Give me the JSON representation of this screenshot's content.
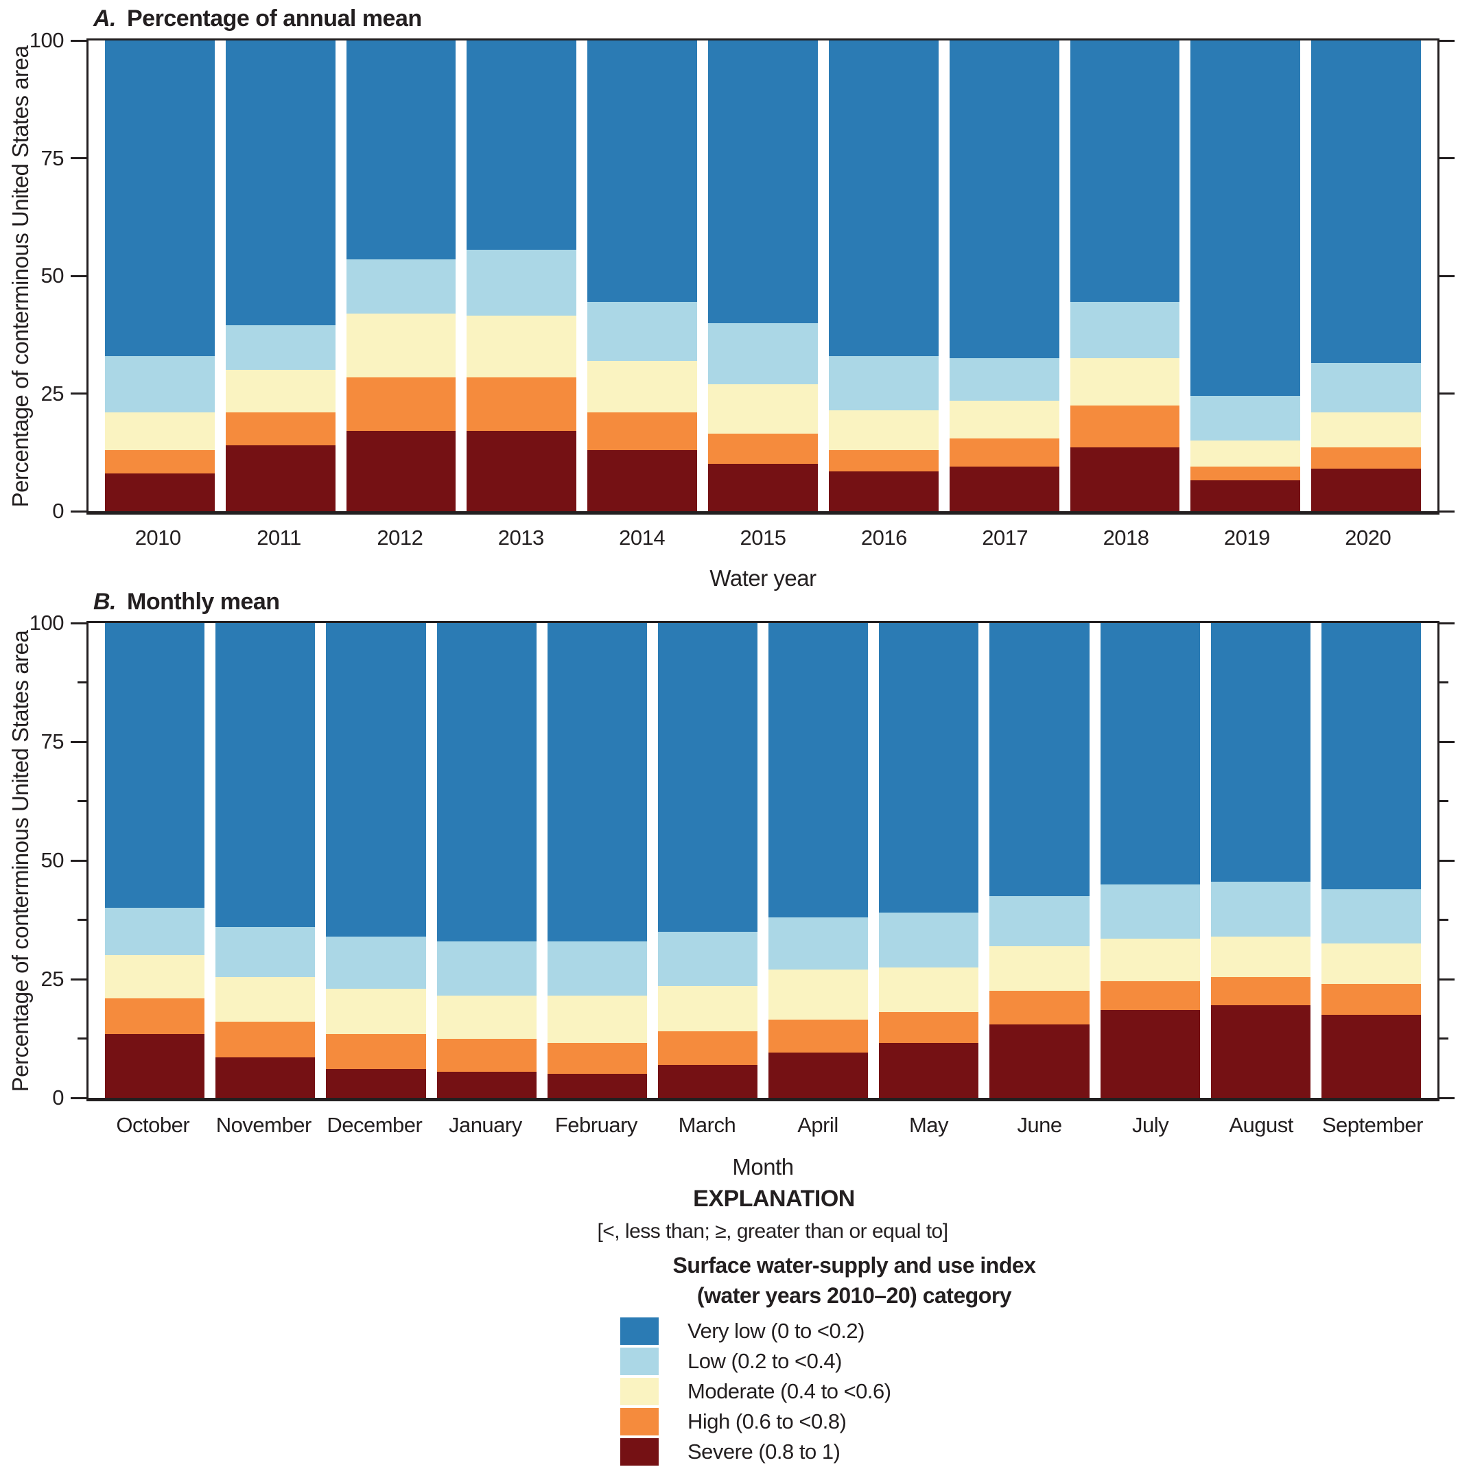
{
  "ink_color": "#231f20",
  "palette": {
    "very_low": "#2b7bb4",
    "low": "#abd7e6",
    "moderate": "#faf3c1",
    "high": "#f58b3d",
    "severe": "#751114"
  },
  "chart_data": [
    {
      "type": "bar",
      "stacked": true,
      "panel_label": "A.",
      "title": "Percentage of annual mean",
      "xlabel": "Water year",
      "ylabel": "Percentage of conterminous United States area",
      "ylim": [
        0,
        100
      ],
      "yticks": [
        0,
        25,
        50,
        75,
        100
      ],
      "minor_yticks": [],
      "grid": false,
      "legend_position": "below-figure",
      "categories": [
        "2010",
        "2011",
        "2012",
        "2013",
        "2014",
        "2015",
        "2016",
        "2017",
        "2018",
        "2019",
        "2020"
      ],
      "series": [
        {
          "name": "Severe (0.8 to 1)",
          "color_key": "severe",
          "values": [
            8,
            14,
            17,
            17,
            13,
            10,
            8.5,
            9.5,
            13.5,
            6.5,
            9
          ]
        },
        {
          "name": "High (0.6 to <0.8)",
          "color_key": "high",
          "values": [
            5,
            7,
            11.5,
            11.5,
            8,
            6.5,
            4.5,
            6,
            9,
            3,
            4.5
          ]
        },
        {
          "name": "Moderate (0.4 to <0.6)",
          "color_key": "moderate",
          "values": [
            8,
            9,
            13.5,
            13,
            11,
            10.5,
            8.5,
            8,
            10,
            5.5,
            7.5
          ]
        },
        {
          "name": "Low (0.2 to <0.4)",
          "color_key": "low",
          "values": [
            12,
            9.5,
            11.5,
            14,
            12.5,
            13,
            11.5,
            9,
            12,
            9.5,
            10.5
          ]
        },
        {
          "name": "Very low (0 to <0.2)",
          "color_key": "very_low",
          "values": [
            67,
            60.5,
            46.5,
            44.5,
            55.5,
            60,
            67,
            67.5,
            55.5,
            75.5,
            68.5
          ]
        }
      ]
    },
    {
      "type": "bar",
      "stacked": true,
      "panel_label": "B.",
      "title": "Monthly mean",
      "xlabel": "Month",
      "ylabel": "Percentage of conterminous United States area",
      "ylim": [
        0,
        100
      ],
      "yticks": [
        0,
        25,
        50,
        75,
        100
      ],
      "minor_yticks": [
        12.5,
        37.5,
        62.5,
        87.5
      ],
      "grid": false,
      "legend_position": "below-figure",
      "categories": [
        "October",
        "November",
        "December",
        "January",
        "February",
        "March",
        "April",
        "May",
        "June",
        "July",
        "August",
        "September"
      ],
      "series": [
        {
          "name": "Severe (0.8 to 1)",
          "color_key": "severe",
          "values": [
            13.5,
            8.5,
            6,
            5.5,
            5,
            7,
            9.5,
            11.5,
            15.5,
            18.5,
            19.5,
            17.5
          ]
        },
        {
          "name": "High (0.6 to <0.8)",
          "color_key": "high",
          "values": [
            7.5,
            7.5,
            7.5,
            7,
            6.5,
            7,
            7,
            6.5,
            7,
            6,
            6,
            6.5
          ]
        },
        {
          "name": "Moderate (0.4 to <0.6)",
          "color_key": "moderate",
          "values": [
            9,
            9.5,
            9.5,
            9,
            10,
            9.5,
            10.5,
            9.5,
            9.5,
            9,
            8.5,
            8.5
          ]
        },
        {
          "name": "Low (0.2 to <0.4)",
          "color_key": "low",
          "values": [
            10,
            10.5,
            11,
            11.5,
            11.5,
            11.5,
            11,
            11.5,
            10.5,
            11.5,
            11.5,
            11.5
          ]
        },
        {
          "name": "Very low (0 to <0.2)",
          "color_key": "very_low",
          "values": [
            60,
            64,
            66,
            67,
            67,
            65,
            62,
            61,
            57.5,
            55,
            54.5,
            56
          ]
        }
      ]
    }
  ],
  "explanation": {
    "heading": "EXPLANATION",
    "note": "[<, less than; ≥, greater than or equal to]",
    "subtitle_line1": "Surface water-supply and use index",
    "subtitle_line2": "(water years 2010–20) category",
    "items": [
      {
        "label": "Very low (0 to <0.2)",
        "color_key": "very_low"
      },
      {
        "label": "Low (0.2 to <0.4)",
        "color_key": "low"
      },
      {
        "label": "Moderate (0.4 to <0.6)",
        "color_key": "moderate"
      },
      {
        "label": "High (0.6 to <0.8)",
        "color_key": "high"
      },
      {
        "label": "Severe (0.8 to 1)",
        "color_key": "severe"
      }
    ]
  }
}
